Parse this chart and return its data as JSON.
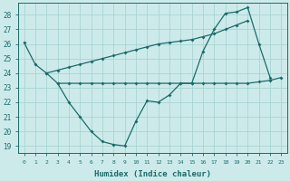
{
  "xlabel": "Humidex (Indice chaleur)",
  "background_color": "#cdeaea",
  "grid_color": "#a8d4d4",
  "line_color": "#1a6b6b",
  "x_values": [
    0,
    1,
    2,
    3,
    4,
    5,
    6,
    7,
    8,
    9,
    10,
    11,
    12,
    13,
    14,
    15,
    16,
    17,
    18,
    19,
    20,
    21,
    22,
    23
  ],
  "line1": [
    26.1,
    24.6,
    24.0,
    23.3,
    22.0,
    21.0,
    20.0,
    19.3,
    19.1,
    19.0,
    20.7,
    22.1,
    22.0,
    22.5,
    23.3,
    23.3,
    25.5,
    27.0,
    28.1,
    28.2,
    28.5,
    26.0,
    23.7,
    null
  ],
  "line2": [
    null,
    null,
    24.0,
    24.2,
    24.4,
    24.6,
    24.8,
    25.0,
    25.2,
    25.4,
    25.6,
    25.8,
    26.0,
    26.1,
    26.2,
    26.3,
    26.5,
    26.7,
    27.0,
    27.3,
    27.6,
    null,
    null,
    null
  ],
  "line3": [
    null,
    null,
    null,
    23.3,
    23.3,
    23.3,
    23.3,
    23.3,
    23.3,
    23.3,
    23.3,
    23.3,
    23.3,
    23.3,
    23.3,
    23.3,
    23.3,
    23.3,
    23.3,
    23.3,
    23.3,
    23.4,
    23.5,
    23.7
  ],
  "ylim": [
    18.5,
    28.8
  ],
  "yticks": [
    19,
    20,
    21,
    22,
    23,
    24,
    25,
    26,
    27,
    28
  ],
  "xticks": [
    0,
    1,
    2,
    3,
    4,
    5,
    6,
    7,
    8,
    9,
    10,
    11,
    12,
    13,
    14,
    15,
    16,
    17,
    18,
    19,
    20,
    21,
    22,
    23
  ]
}
